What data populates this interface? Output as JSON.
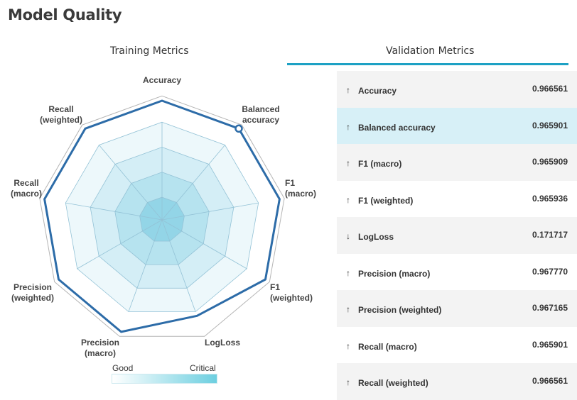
{
  "title": "Model Quality",
  "tabs": {
    "training": "Training Metrics",
    "validation": "Validation Metrics"
  },
  "radar": {
    "axes": [
      {
        "line1": "Accuracy",
        "line2": "",
        "value": 0.966561
      },
      {
        "line1": "Balanced",
        "line2": "accuracy",
        "value": 0.965901
      },
      {
        "line1": "F1",
        "line2": "(macro)",
        "value": 0.965909
      },
      {
        "line1": "F1",
        "line2": "(weighted)",
        "value": 0.965936
      },
      {
        "line1": "LogLoss",
        "line2": "",
        "value": 0.171717
      },
      {
        "line1": "Precision",
        "line2": "(macro)",
        "value": 0.96777
      },
      {
        "line1": "Precision",
        "line2": "(weighted)",
        "value": 0.967165
      },
      {
        "line1": "Recall",
        "line2": "(macro)",
        "value": 0.965901
      },
      {
        "line1": "Recall",
        "line2": "(weighted)",
        "value": 0.966561
      }
    ],
    "highlighted_axis": 1,
    "colors": {
      "line": "#2d6ca8",
      "ring_stroke": "#93c2d6"
    }
  },
  "legend": {
    "good": "Good",
    "critical": "Critical"
  },
  "metrics": [
    {
      "arrow": "↑",
      "name": "Accuracy",
      "value": "0.966561"
    },
    {
      "arrow": "↑",
      "name": "Balanced accuracy",
      "value": "0.965901"
    },
    {
      "arrow": "↑",
      "name": "F1 (macro)",
      "value": "0.965909"
    },
    {
      "arrow": "↑",
      "name": "F1 (weighted)",
      "value": "0.965936"
    },
    {
      "arrow": "↓",
      "name": "LogLoss",
      "value": "0.171717"
    },
    {
      "arrow": "↑",
      "name": "Precision (macro)",
      "value": "0.967770"
    },
    {
      "arrow": "↑",
      "name": "Precision (weighted)",
      "value": "0.967165"
    },
    {
      "arrow": "↑",
      "name": "Recall (macro)",
      "value": "0.965901"
    },
    {
      "arrow": "↑",
      "name": "Recall (weighted)",
      "value": "0.966561"
    }
  ],
  "selected_metric_index": 1
}
